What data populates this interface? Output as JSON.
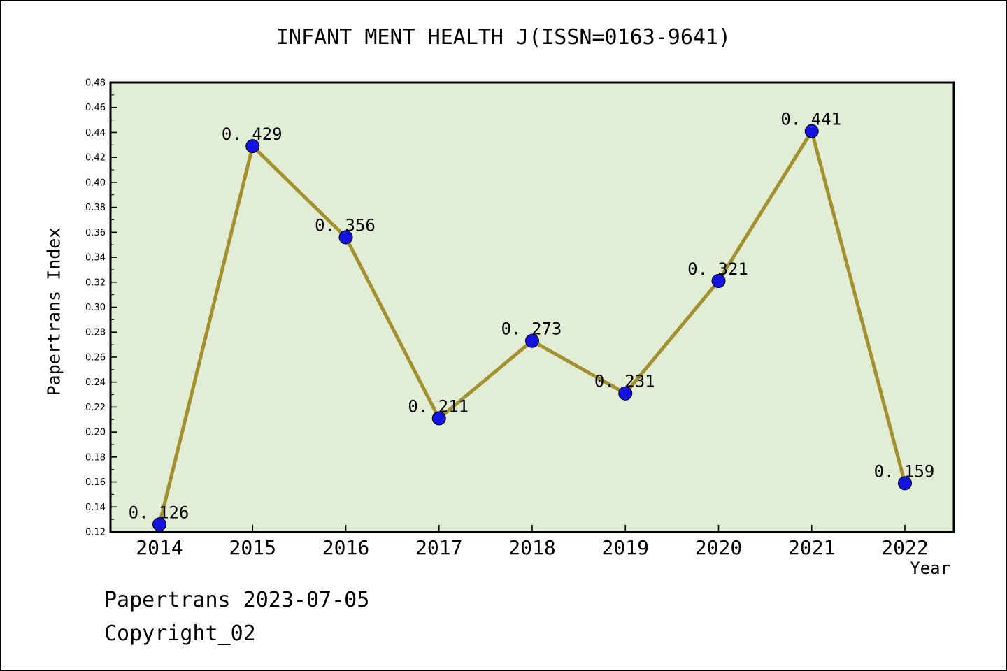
{
  "header": {
    "title": "INFANT MENT HEALTH J(ISSN=0163-9641)"
  },
  "footer": {
    "source_line": "Papertrans 2023-07-05",
    "copyright_line": "Copyright_02"
  },
  "chart_data": {
    "type": "line",
    "title": "INFANT MENT HEALTH J(ISSN=0163-9641)",
    "xlabel": "Year",
    "ylabel": "Papertrans Index",
    "x": [
      2014,
      2015,
      2016,
      2017,
      2018,
      2019,
      2020,
      2021,
      2022
    ],
    "series": [
      {
        "name": "Papertrans Index",
        "values": [
          0.126,
          0.429,
          0.356,
          0.211,
          0.273,
          0.231,
          0.321,
          0.441,
          0.159
        ]
      }
    ],
    "point_labels": [
      "0. 126",
      "0. 429",
      "0. 356",
      "0. 211",
      "0. 273",
      "0. 231",
      "0. 321",
      "0. 441",
      "0. 159"
    ],
    "ylim": [
      0.12,
      0.48
    ],
    "ytick_step": 0.02,
    "yminor_step": 0.01,
    "grid": false,
    "legend": false,
    "colors": {
      "plot_bg": "#e1edd4",
      "line": "#a3902f",
      "marker_fill": "#1414e0",
      "marker_edge": "#000000",
      "frame": "#000000",
      "text": "#000000"
    }
  }
}
